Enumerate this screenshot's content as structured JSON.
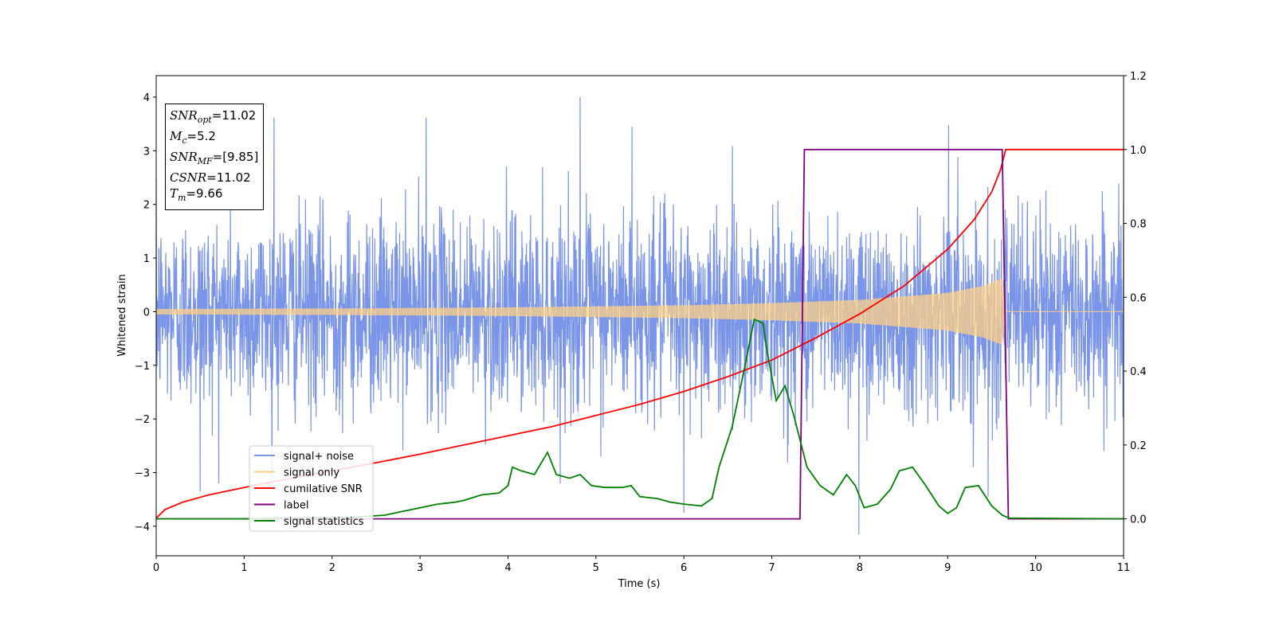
{
  "info_box": {
    "lines": [
      {
        "name": "SNR",
        "sub": "opt",
        "value": "11.02"
      },
      {
        "name": "M",
        "sub": "c",
        "value": "5.2"
      },
      {
        "name": "SNR",
        "sub": "MF",
        "value": "[9.85]"
      },
      {
        "name": "CSNR",
        "sub": "",
        "value": "11.02"
      },
      {
        "name": "T",
        "sub": "m",
        "value": "9.66"
      }
    ]
  },
  "chart_data": {
    "type": "line",
    "xlabel": "Time (s)",
    "ylabel": "Whitened strain",
    "y2label": "",
    "xlim": [
      0,
      11
    ],
    "ylim": [
      -4.55,
      4.4
    ],
    "y2lim": [
      -0.1,
      1.2
    ],
    "x_ticks": [
      "0",
      "1",
      "2",
      "3",
      "4",
      "5",
      "6",
      "7",
      "8",
      "9",
      "10",
      "11"
    ],
    "y_ticks": [
      "4",
      "3",
      "2",
      "1",
      "0",
      "−1",
      "−2",
      "−3",
      "−4"
    ],
    "y2_ticks": [
      "1.2",
      "1.0",
      "0.8",
      "0.6",
      "0.4",
      "0.2",
      "0.0"
    ],
    "legend_position": "lower-left",
    "colors": {
      "signal_noise": "#7a94e8",
      "signal_only": "#fdd086",
      "cumulative_snr": "#ff0000",
      "label": "#800080",
      "signal_statistics": "#008000"
    },
    "series": [
      {
        "name": "signal+ noise",
        "axis": "left",
        "description_free": true,
        "amplitude_sd": 0.9,
        "extremes": [
          {
            "x": 1.34,
            "y": 3.62
          },
          {
            "x": 3.07,
            "y": 3.62
          },
          {
            "x": 4.82,
            "y": 4.0
          },
          {
            "x": 5.41,
            "y": 3.45
          },
          {
            "x": 9.01,
            "y": 3.48
          },
          {
            "x": 0.5,
            "y": -3.35
          },
          {
            "x": 6.0,
            "y": -3.75
          },
          {
            "x": 7.99,
            "y": -4.15
          },
          {
            "x": 9.46,
            "y": -3.45
          }
        ],
        "x_range": [
          0,
          11
        ]
      },
      {
        "name": "signal only",
        "axis": "left",
        "envelope": [
          {
            "x": 0.0,
            "y": 0.05
          },
          {
            "x": 2.0,
            "y": 0.06
          },
          {
            "x": 4.0,
            "y": 0.08
          },
          {
            "x": 6.0,
            "y": 0.12
          },
          {
            "x": 7.0,
            "y": 0.16
          },
          {
            "x": 8.0,
            "y": 0.22
          },
          {
            "x": 9.0,
            "y": 0.35
          },
          {
            "x": 9.4,
            "y": 0.48
          },
          {
            "x": 9.62,
            "y": 0.62
          },
          {
            "x": 9.66,
            "y": 0.0
          },
          {
            "x": 11.0,
            "y": 0.0
          }
        ]
      },
      {
        "name": "cumilative SNR",
        "axis": "right",
        "points": [
          [
            0.0,
            0.002
          ],
          [
            0.1,
            0.025
          ],
          [
            0.3,
            0.045
          ],
          [
            0.6,
            0.065
          ],
          [
            1.0,
            0.085
          ],
          [
            1.5,
            0.108
          ],
          [
            2.0,
            0.13
          ],
          [
            2.5,
            0.152
          ],
          [
            3.0,
            0.175
          ],
          [
            3.5,
            0.2
          ],
          [
            4.0,
            0.225
          ],
          [
            4.5,
            0.25
          ],
          [
            5.0,
            0.28
          ],
          [
            5.5,
            0.31
          ],
          [
            6.0,
            0.345
          ],
          [
            6.5,
            0.385
          ],
          [
            7.0,
            0.43
          ],
          [
            7.5,
            0.49
          ],
          [
            8.0,
            0.555
          ],
          [
            8.5,
            0.63
          ],
          [
            9.0,
            0.73
          ],
          [
            9.3,
            0.81
          ],
          [
            9.5,
            0.885
          ],
          [
            9.6,
            0.945
          ],
          [
            9.66,
            1.0
          ],
          [
            11.0,
            1.0
          ]
        ]
      },
      {
        "name": "label",
        "axis": "right",
        "points": [
          [
            0.0,
            0.0
          ],
          [
            7.32,
            0.0
          ],
          [
            7.37,
            1.0
          ],
          [
            9.62,
            1.0
          ],
          [
            9.69,
            0.0
          ],
          [
            11.0,
            0.0
          ]
        ]
      },
      {
        "name": "signal statistics",
        "axis": "right",
        "points": [
          [
            0.0,
            0.0
          ],
          [
            1.0,
            0.0
          ],
          [
            1.8,
            0.003
          ],
          [
            2.2,
            0.004
          ],
          [
            2.6,
            0.01
          ],
          [
            2.8,
            0.02
          ],
          [
            3.0,
            0.03
          ],
          [
            3.2,
            0.04
          ],
          [
            3.4,
            0.045
          ],
          [
            3.5,
            0.05
          ],
          [
            3.7,
            0.065
          ],
          [
            3.9,
            0.07
          ],
          [
            4.0,
            0.09
          ],
          [
            4.05,
            0.14
          ],
          [
            4.15,
            0.13
          ],
          [
            4.3,
            0.12
          ],
          [
            4.45,
            0.18
          ],
          [
            4.55,
            0.12
          ],
          [
            4.7,
            0.11
          ],
          [
            4.82,
            0.12
          ],
          [
            4.95,
            0.09
          ],
          [
            5.1,
            0.085
          ],
          [
            5.3,
            0.085
          ],
          [
            5.4,
            0.09
          ],
          [
            5.5,
            0.06
          ],
          [
            5.7,
            0.055
          ],
          [
            5.85,
            0.045
          ],
          [
            6.0,
            0.04
          ],
          [
            6.2,
            0.035
          ],
          [
            6.32,
            0.055
          ],
          [
            6.4,
            0.14
          ],
          [
            6.55,
            0.25
          ],
          [
            6.7,
            0.42
          ],
          [
            6.8,
            0.54
          ],
          [
            6.9,
            0.53
          ],
          [
            6.95,
            0.45
          ],
          [
            7.05,
            0.32
          ],
          [
            7.15,
            0.36
          ],
          [
            7.25,
            0.28
          ],
          [
            7.4,
            0.14
          ],
          [
            7.55,
            0.09
          ],
          [
            7.7,
            0.065
          ],
          [
            7.85,
            0.12
          ],
          [
            7.95,
            0.09
          ],
          [
            8.05,
            0.03
          ],
          [
            8.2,
            0.04
          ],
          [
            8.35,
            0.08
          ],
          [
            8.45,
            0.13
          ],
          [
            8.6,
            0.14
          ],
          [
            8.75,
            0.09
          ],
          [
            8.9,
            0.035
          ],
          [
            9.0,
            0.015
          ],
          [
            9.1,
            0.03
          ],
          [
            9.2,
            0.085
          ],
          [
            9.35,
            0.09
          ],
          [
            9.5,
            0.035
          ],
          [
            9.62,
            0.01
          ],
          [
            9.7,
            0.002
          ],
          [
            11.0,
            0.0
          ]
        ]
      }
    ]
  }
}
